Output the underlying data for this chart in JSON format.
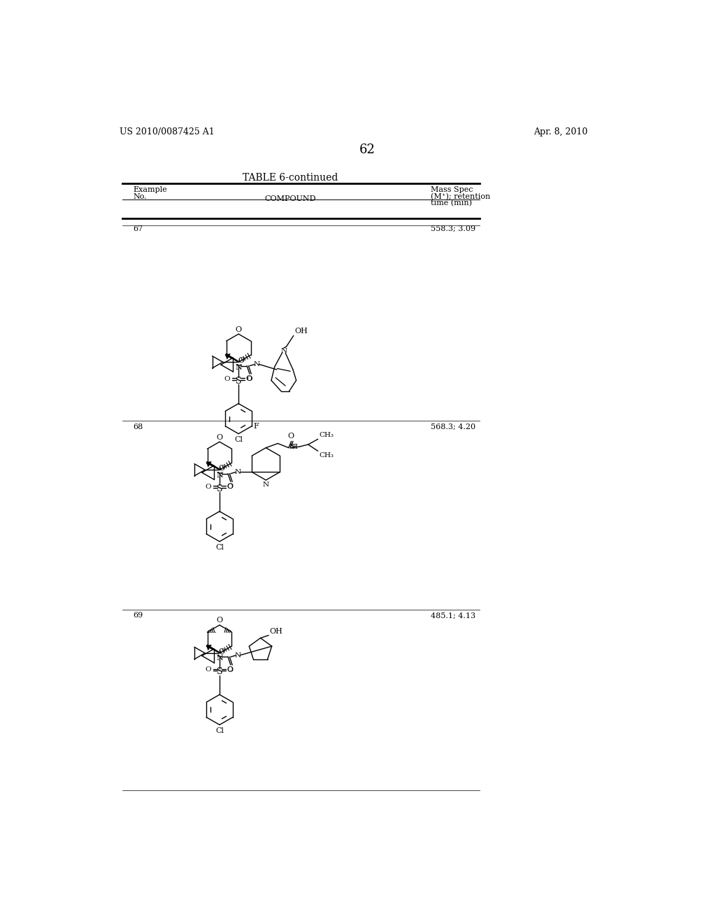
{
  "background_color": "#ffffff",
  "header_left": "US 2010/0087425 A1",
  "header_right": "Apr. 8, 2010",
  "page_number": "62",
  "table_title": "TABLE 6-continued",
  "rows": [
    {
      "example": "67",
      "mass_spec": "558.3; 3.09"
    },
    {
      "example": "68",
      "mass_spec": "568.3; 4.20"
    },
    {
      "example": "69",
      "mass_spec": "485.1; 4.13"
    }
  ]
}
